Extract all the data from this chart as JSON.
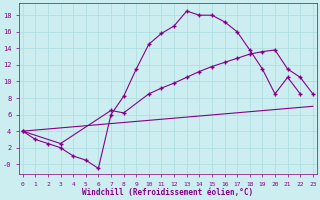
{
  "bg_color": "#cceef0",
  "line_color": "#880088",
  "xlim": [
    -0.3,
    23.3
  ],
  "ylim": [
    -1.2,
    19.5
  ],
  "xticks": [
    0,
    1,
    2,
    3,
    4,
    5,
    6,
    7,
    8,
    9,
    10,
    11,
    12,
    13,
    14,
    15,
    16,
    17,
    18,
    19,
    20,
    21,
    22,
    23
  ],
  "yticks": [
    0,
    2,
    4,
    6,
    8,
    10,
    12,
    14,
    16,
    18
  ],
  "ytick_labels": [
    "-0",
    "2",
    "4",
    "6",
    "8",
    "10",
    "12",
    "14",
    "16",
    "18"
  ],
  "xlabel": "Windchill (Refroidissement éolien,°C)",
  "curve1_x": [
    0,
    1,
    2,
    3,
    4,
    5,
    6,
    7,
    8,
    9,
    10,
    11,
    12,
    13,
    14,
    15,
    16,
    17,
    18,
    19,
    20,
    21,
    22
  ],
  "curve1_y": [
    4.0,
    3.0,
    2.5,
    2.0,
    1.0,
    0.5,
    -0.5,
    6.0,
    8.2,
    11.5,
    14.5,
    15.8,
    16.7,
    18.5,
    18.0,
    18.0,
    17.2,
    16.0,
    13.8,
    11.5,
    8.5,
    10.5,
    8.5
  ],
  "curve2_x": [
    0,
    3,
    7,
    8,
    10,
    11,
    12,
    13,
    14,
    15,
    16,
    17,
    18,
    19,
    20,
    21,
    22,
    23
  ],
  "curve2_y": [
    4.0,
    2.5,
    6.5,
    6.2,
    8.5,
    9.2,
    9.8,
    10.5,
    11.2,
    11.8,
    12.3,
    12.8,
    13.3,
    13.6,
    13.8,
    11.5,
    10.5,
    8.5
  ],
  "curve3_x": [
    0,
    23
  ],
  "curve3_y": [
    4.0,
    7.0
  ],
  "grid_color": "#aadde0",
  "tick_fontsize": 5,
  "xlabel_fontsize": 5.5
}
